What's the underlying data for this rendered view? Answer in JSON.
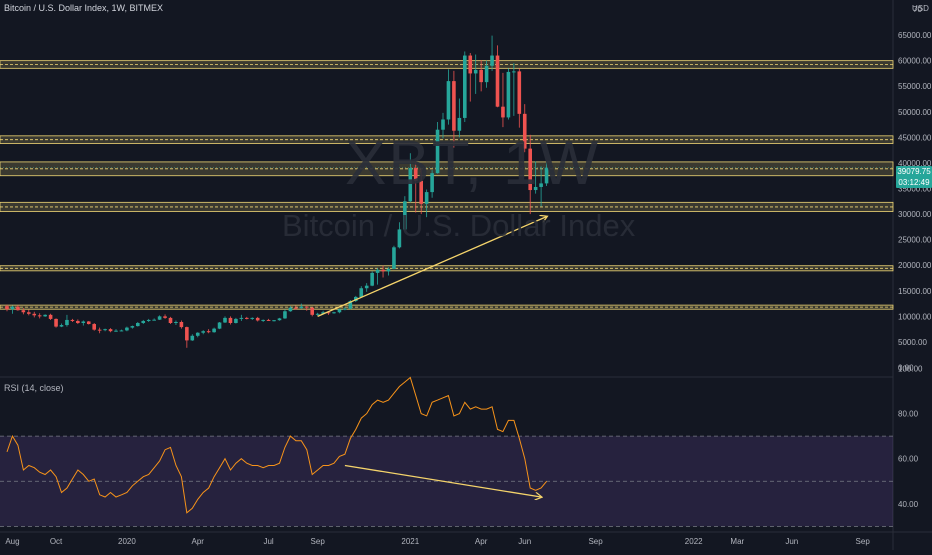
{
  "header": {
    "title": "Bitcoin / U.S. Dollar Index, 1W, BITMEX",
    "currency": "USD",
    "watermark_symbol": "XBT, 1W",
    "watermark_desc": "Bitcoin / U.S. Dollar Index"
  },
  "price_tag": {
    "price": "39079.75",
    "countdown": "03:12:49"
  },
  "rsi": {
    "label": "RSI (14, close)"
  },
  "colors": {
    "background": "#131722",
    "up": "#26a69a",
    "down": "#ef5350",
    "rsi_line": "#f7931a",
    "rsi_band": "#7e57c2",
    "zone": "#f0d675",
    "trendline": "#f5d46b"
  },
  "chart_data": [
    {
      "type": "candlestick",
      "title": "Bitcoin / U.S. Dollar Index, 1W, BITMEX",
      "ylabel": "USD",
      "ylim": [
        -1000,
        70000
      ],
      "yticks": [
        0,
        5000,
        10000,
        15000,
        20000,
        25000,
        30000,
        35000,
        40000,
        45000,
        50000,
        55000,
        60000,
        65000
      ],
      "ytick_labels": [
        "0.00",
        "5000.00",
        "10000.00",
        "15000.00",
        "20000.00",
        "25000.00",
        "30000.00",
        "35000.00",
        "40000.00",
        "45000.00",
        "50000.00",
        "55000.00",
        "60000.00",
        "65000.00"
      ],
      "top_partial_label": "70",
      "xtick_labels": [
        "Aug",
        "Oct",
        "2020",
        "Apr",
        "Jul",
        "Sep",
        "2021",
        "Apr",
        "Jun",
        "Sep",
        "2022",
        "Mar",
        "Jun",
        "Sep"
      ],
      "xtick_weeks": [
        1,
        9,
        22,
        35,
        48,
        57,
        74,
        87,
        95,
        108,
        126,
        134,
        144,
        157
      ],
      "grid": false,
      "candles": [
        [
          12000,
          12300,
          11000,
          11400
        ],
        [
          11400,
          12100,
          10500,
          11900
        ],
        [
          11900,
          12200,
          11100,
          11200
        ],
        [
          11200,
          11600,
          10400,
          10800
        ],
        [
          10800,
          11300,
          10200,
          10500
        ],
        [
          10500,
          10900,
          9800,
          10200
        ],
        [
          10200,
          10600,
          9600,
          10000
        ],
        [
          10000,
          10400,
          9900,
          10300
        ],
        [
          10300,
          10500,
          9300,
          9500
        ],
        [
          9500,
          9600,
          7800,
          8000
        ],
        [
          8000,
          8600,
          7900,
          8300
        ],
        [
          8300,
          10300,
          8000,
          9300
        ],
        [
          9300,
          9500,
          8900,
          9100
        ],
        [
          9100,
          9400,
          8500,
          8700
        ],
        [
          8700,
          9200,
          8200,
          9000
        ],
        [
          9000,
          9100,
          8400,
          8500
        ],
        [
          8500,
          8700,
          7200,
          7400
        ],
        [
          7400,
          7800,
          6700,
          7300
        ],
        [
          7300,
          7600,
          7100,
          7500
        ],
        [
          7500,
          7700,
          6900,
          7100
        ],
        [
          7100,
          7500,
          7000,
          7200
        ],
        [
          7200,
          7400,
          7100,
          7250
        ],
        [
          7250,
          8000,
          7100,
          7800
        ],
        [
          7800,
          8200,
          7600,
          8100
        ],
        [
          8100,
          8900,
          8000,
          8700
        ],
        [
          8700,
          9300,
          8500,
          9100
        ],
        [
          9100,
          9500,
          8900,
          9300
        ],
        [
          9300,
          9600,
          9200,
          9350
        ],
        [
          9350,
          10200,
          9300,
          10000
        ],
        [
          10000,
          10400,
          9500,
          9700
        ],
        [
          9700,
          9900,
          8500,
          8700
        ],
        [
          8700,
          9200,
          8300,
          8900
        ],
        [
          8900,
          9200,
          7600,
          7900
        ],
        [
          7900,
          8000,
          3850,
          5300
        ],
        [
          5300,
          6500,
          5200,
          6200
        ],
        [
          6200,
          6900,
          5900,
          6800
        ],
        [
          6800,
          7300,
          6500,
          7100
        ],
        [
          7100,
          7500,
          6700,
          6900
        ],
        [
          6900,
          7800,
          6800,
          7600
        ],
        [
          7600,
          8900,
          7500,
          8800
        ],
        [
          8800,
          10000,
          8700,
          9700
        ],
        [
          9700,
          10000,
          8400,
          8700
        ],
        [
          8700,
          9700,
          8600,
          9500
        ],
        [
          9500,
          10300,
          9100,
          9700
        ],
        [
          9700,
          9900,
          9400,
          9600
        ],
        [
          9600,
          9800,
          9300,
          9700
        ],
        [
          9700,
          9900,
          9000,
          9200
        ],
        [
          9200,
          9400,
          8900,
          9300
        ],
        [
          9300,
          9500,
          9100,
          9200
        ],
        [
          9200,
          9300,
          9000,
          9250
        ],
        [
          9250,
          9700,
          9150,
          9600
        ],
        [
          9600,
          11400,
          9500,
          11000
        ],
        [
          11000,
          12000,
          10900,
          11700
        ],
        [
          11700,
          12100,
          11300,
          11600
        ],
        [
          11600,
          12500,
          11500,
          11900
        ],
        [
          11900,
          12000,
          11100,
          11700
        ],
        [
          11700,
          11800,
          10000,
          10300
        ],
        [
          10300,
          10700,
          10100,
          10500
        ],
        [
          10500,
          11100,
          10400,
          10800
        ],
        [
          10800,
          11000,
          10300,
          10700
        ],
        [
          10700,
          10900,
          10500,
          10800
        ],
        [
          10800,
          11500,
          10600,
          11400
        ],
        [
          11400,
          11800,
          11200,
          11500
        ],
        [
          11500,
          13200,
          11400,
          13000
        ],
        [
          13000,
          14000,
          12800,
          13800
        ],
        [
          13800,
          15900,
          13700,
          15500
        ],
        [
          15500,
          16500,
          14800,
          16000
        ],
        [
          16000,
          18800,
          15900,
          18500
        ],
        [
          18500,
          19400,
          16200,
          19100
        ],
        [
          19100,
          19900,
          17600,
          18800
        ],
        [
          18800,
          19600,
          18000,
          19300
        ],
        [
          19300,
          23800,
          19200,
          23500
        ],
        [
          23500,
          28400,
          23300,
          27000
        ],
        [
          27000,
          33500,
          26800,
          32500
        ],
        [
          32500,
          41900,
          32300,
          39000
        ],
        [
          39000,
          40200,
          30300,
          36500
        ],
        [
          36500,
          38800,
          30000,
          32000
        ],
        [
          32000,
          34800,
          29400,
          34300
        ],
        [
          34300,
          38600,
          33200,
          38000
        ],
        [
          38000,
          48000,
          37900,
          46500
        ],
        [
          46500,
          49800,
          44800,
          48500
        ],
        [
          48500,
          58300,
          47500,
          56000
        ],
        [
          56000,
          58000,
          43000,
          46300
        ],
        [
          46300,
          52600,
          45000,
          48800
        ],
        [
          48800,
          61800,
          48000,
          61000
        ],
        [
          61000,
          61500,
          52000,
          57500
        ],
        [
          57500,
          61200,
          53500,
          58200
        ],
        [
          58200,
          60100,
          54000,
          55800
        ],
        [
          55800,
          60000,
          54700,
          59000
        ],
        [
          59000,
          64900,
          58000,
          61000
        ],
        [
          61000,
          63000,
          50900,
          51000
        ],
        [
          51000,
          57600,
          47000,
          48900
        ],
        [
          48900,
          58500,
          48500,
          57800
        ],
        [
          57800,
          59500,
          49200,
          57900
        ],
        [
          57900,
          58500,
          46900,
          49600
        ],
        [
          49600,
          51500,
          42100,
          42800
        ],
        [
          42800,
          45500,
          30000,
          34700
        ],
        [
          34700,
          40300,
          34000,
          35300
        ],
        [
          35300,
          39300,
          31500,
          36000
        ],
        [
          36000,
          40100,
          35500,
          39079
        ]
      ],
      "price_zones": [
        {
          "low": 58500,
          "high": 60000
        },
        {
          "low": 43800,
          "high": 45300
        },
        {
          "low": 37500,
          "high": 40200
        },
        {
          "low": 30500,
          "high": 32300
        },
        {
          "low": 18900,
          "high": 19900
        },
        {
          "low": 11400,
          "high": 12200
        }
      ],
      "trendline": {
        "from": {
          "week": 57,
          "value": 10000
        },
        "to": {
          "week": 99,
          "value": 29500
        }
      },
      "last_price": 39079.75
    },
    {
      "type": "line",
      "title": "RSI (14, close)",
      "ylim": [
        27,
        103
      ],
      "yticks": [
        40,
        60,
        80,
        100
      ],
      "ytick_labels": [
        "40.00",
        "60.00",
        "80.00",
        "100.00"
      ],
      "band": [
        30,
        70
      ],
      "midline": 50,
      "series": [
        {
          "values": [
            63,
            70,
            66,
            55,
            57,
            56,
            54,
            53,
            55,
            52,
            45,
            47,
            51,
            55,
            53,
            50,
            51,
            44,
            43,
            45,
            43,
            44,
            45,
            48,
            50,
            52,
            53,
            56,
            59,
            64,
            65,
            57,
            52,
            36,
            38,
            42,
            45,
            47,
            52,
            56,
            60,
            55,
            58,
            60,
            58,
            57,
            57,
            56,
            57,
            57,
            58,
            65,
            70,
            68,
            68,
            64,
            53,
            55,
            57,
            57,
            58,
            61,
            62,
            69,
            73,
            78,
            80,
            84,
            86,
            85,
            86,
            89,
            92,
            94,
            96,
            88,
            80,
            79,
            85,
            86,
            87,
            88,
            79,
            80,
            85,
            82,
            83,
            82,
            82,
            83,
            73,
            72,
            77,
            77,
            69,
            60,
            47,
            46,
            47,
            50
          ]
        }
      ],
      "trendline": {
        "from": {
          "week": 62,
          "value": 57
        },
        "to": {
          "week": 98,
          "value": 43
        }
      }
    }
  ]
}
